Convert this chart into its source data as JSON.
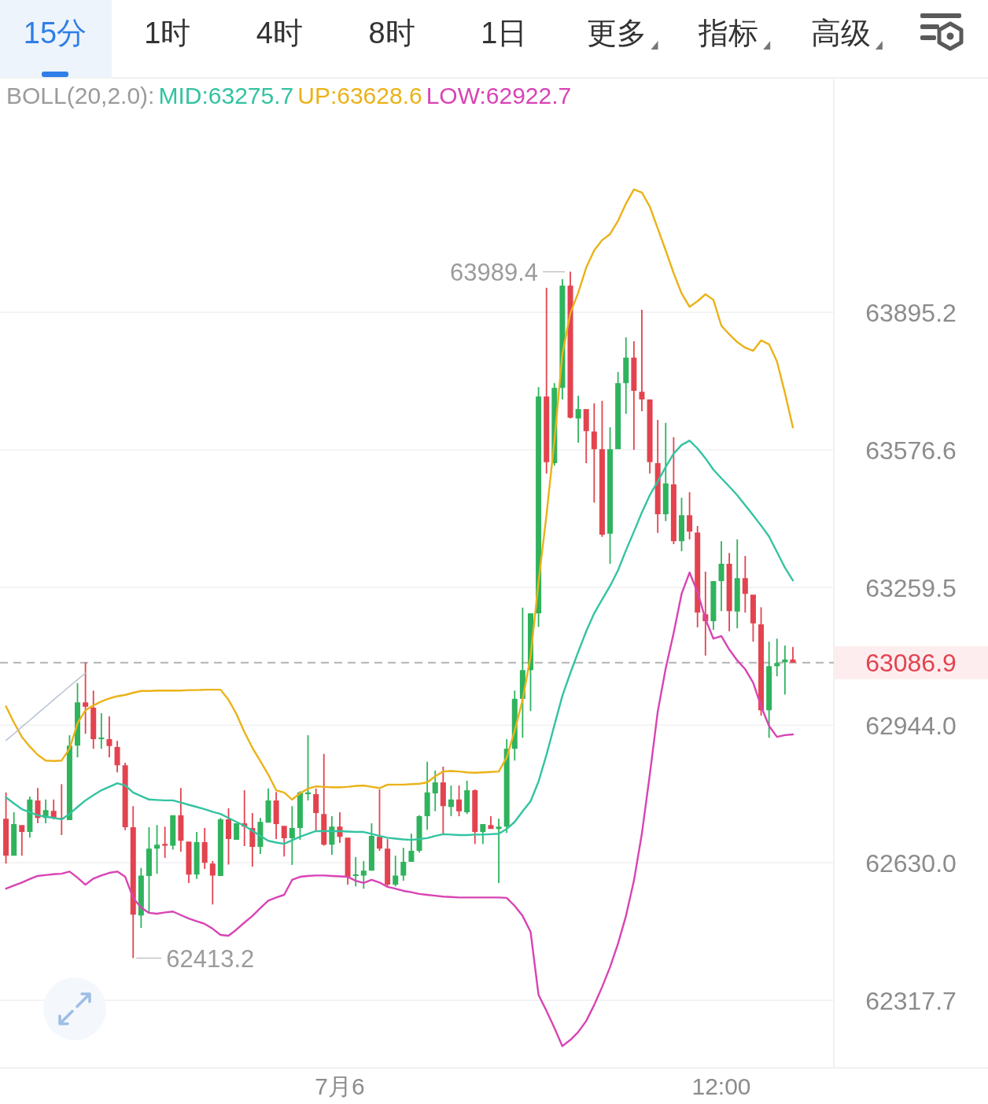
{
  "chart_data": {
    "type": "candlestick",
    "legend_title": "BOLL(20,2.0):",
    "annotations": [
      "15分",
      "1时",
      "4时",
      "8时",
      "1日",
      "更多",
      "指标",
      "高级",
      "63989.4",
      "62413.2"
    ],
    "categories": [
      null,
      null,
      null,
      null,
      null,
      null,
      null,
      null,
      null,
      null,
      null,
      null,
      null,
      null,
      null,
      null,
      null,
      null,
      null,
      null,
      null,
      null,
      null,
      null,
      null,
      null,
      null,
      null,
      null,
      null,
      null,
      null,
      null,
      null,
      null,
      null,
      null,
      null,
      null,
      null,
      null,
      null,
      "7月6",
      null,
      null,
      null,
      null,
      null,
      null,
      null,
      null,
      null,
      null,
      null,
      null,
      null,
      null,
      null,
      null,
      null,
      null,
      null,
      null,
      null,
      null,
      null,
      null,
      null,
      null,
      null,
      null,
      null,
      null,
      null,
      null,
      null,
      null,
      null,
      null,
      null,
      null,
      null,
      null,
      null,
      null,
      null,
      null,
      null,
      null,
      null,
      "12:00",
      null,
      null,
      null,
      null,
      null,
      null,
      null,
      null,
      null
    ],
    "ohlc": [
      [
        62730,
        62790,
        62628,
        62646
      ],
      [
        62646,
        62745,
        62646,
        62718
      ],
      [
        62716,
        62716,
        62646,
        62700
      ],
      [
        62700,
        62781,
        62687,
        62774
      ],
      [
        62772,
        62800,
        62720,
        62732
      ],
      [
        62732,
        62774,
        62720,
        62750
      ],
      [
        62748,
        62774,
        62729,
        62732
      ],
      [
        62732,
        62809,
        62693,
        62729
      ],
      [
        62727,
        62921,
        62727,
        62897
      ],
      [
        62897,
        63040,
        62870,
        62996
      ],
      [
        62996,
        63088,
        62924,
        62986
      ],
      [
        62984,
        63023,
        62890,
        62912
      ],
      [
        62912,
        62971,
        62890,
        62915
      ],
      [
        62912,
        62964,
        62870,
        62896
      ],
      [
        62894,
        62908,
        62836,
        62852
      ],
      [
        62852,
        62858,
        62704,
        62711
      ],
      [
        62711,
        62759,
        62413.2,
        62512
      ],
      [
        62510,
        62618,
        62482,
        62601
      ],
      [
        62600,
        62711,
        62514,
        62662
      ],
      [
        62662,
        62716,
        62605,
        62671
      ],
      [
        62673,
        62712,
        62641,
        62669
      ],
      [
        62669,
        62738,
        62660,
        62738
      ],
      [
        62738,
        62800,
        62655,
        62680
      ],
      [
        62678,
        62678,
        62584,
        62603
      ],
      [
        62603,
        62700,
        62593,
        62677
      ],
      [
        62677,
        62709,
        62616,
        62630
      ],
      [
        62628,
        62634,
        62535,
        62601
      ],
      [
        62600,
        62732,
        62600,
        62729
      ],
      [
        62729,
        62754,
        62626,
        62684
      ],
      [
        62682,
        62720,
        62682,
        62720
      ],
      [
        62720,
        62795,
        62668,
        62712
      ],
      [
        62709,
        62743,
        62621,
        62666
      ],
      [
        62666,
        62732,
        62650,
        62723
      ],
      [
        62721,
        62799,
        62721,
        62772
      ],
      [
        62772,
        62791,
        62684,
        62718
      ],
      [
        62714,
        62714,
        62644,
        62686
      ],
      [
        62686,
        62759,
        62625,
        62709
      ],
      [
        62709,
        62793,
        62682,
        62790
      ],
      [
        62786,
        62921,
        62772,
        62790
      ],
      [
        62786,
        62799,
        62702,
        62743
      ],
      [
        62741,
        62878,
        62669,
        62671
      ],
      [
        62671,
        62736,
        62648,
        62712
      ],
      [
        62712,
        62745,
        62675,
        62689
      ],
      [
        62687,
        62687,
        62580,
        62598
      ],
      [
        62600,
        62643,
        62576,
        62603
      ],
      [
        62601,
        62634,
        62571,
        62612
      ],
      [
        62612,
        62720,
        62612,
        62691
      ],
      [
        62689,
        62797,
        62657,
        62662
      ],
      [
        62662,
        62684,
        62576,
        62580
      ],
      [
        62580,
        62646,
        62576,
        62601
      ],
      [
        62601,
        62664,
        62589,
        62632
      ],
      [
        62632,
        62696,
        62632,
        62657
      ],
      [
        62657,
        62738,
        62653,
        62736
      ],
      [
        62736,
        62860,
        62705,
        62790
      ],
      [
        62788,
        62840,
        62747,
        62813
      ],
      [
        62813,
        62849,
        62693,
        62759
      ],
      [
        62757,
        62806,
        62736,
        62774
      ],
      [
        62774,
        62806,
        62736,
        62747
      ],
      [
        62745,
        62817,
        62741,
        62795
      ],
      [
        62795,
        62797,
        62673,
        62700
      ],
      [
        62700,
        62718,
        62673,
        62718
      ],
      [
        62716,
        62736,
        62707,
        62707
      ],
      [
        62707,
        62730,
        62584,
        62712
      ],
      [
        62712,
        62912,
        62698,
        62890
      ],
      [
        62890,
        63023,
        62863,
        63004
      ],
      [
        63004,
        63213,
        62915,
        63070
      ],
      [
        63070,
        63200,
        62976,
        63200
      ],
      [
        63200,
        63722,
        63169,
        63700
      ],
      [
        63700,
        63952,
        63522,
        63548
      ],
      [
        63546,
        63731,
        63540,
        63720
      ],
      [
        63720,
        63972,
        63693,
        63957
      ],
      [
        63957,
        63989.4,
        63649,
        63651
      ],
      [
        63649,
        63702,
        63593,
        63671
      ],
      [
        63671,
        63671,
        63546,
        63620
      ],
      [
        63619,
        63684,
        63455,
        63578
      ],
      [
        63578,
        63690,
        63376,
        63381
      ],
      [
        63383,
        63629,
        63314,
        63578
      ],
      [
        63578,
        63757,
        63578,
        63731
      ],
      [
        63731,
        63837,
        63660,
        63790
      ],
      [
        63790,
        63828,
        63577,
        63713
      ],
      [
        63711,
        63901,
        63666,
        63693
      ],
      [
        63693,
        63693,
        63522,
        63548
      ],
      [
        63546,
        63646,
        63385,
        63428
      ],
      [
        63428,
        63639,
        63412,
        63499
      ],
      [
        63497,
        63606,
        63359,
        63366
      ],
      [
        63366,
        63466,
        63343,
        63426
      ],
      [
        63426,
        63479,
        63370,
        63388
      ],
      [
        63386,
        63401,
        63168,
        63202
      ],
      [
        63198,
        63296,
        63103,
        63182
      ],
      [
        63182,
        63274,
        63162,
        63274
      ],
      [
        63274,
        63366,
        63205,
        63314
      ],
      [
        63314,
        63339,
        63159,
        63205
      ],
      [
        63204,
        63370,
        63166,
        63281
      ],
      [
        63281,
        63332,
        63202,
        63245
      ],
      [
        63243,
        63243,
        63135,
        63177
      ],
      [
        63175,
        63214,
        62966,
        62978
      ],
      [
        62978,
        63135,
        62915,
        63079
      ],
      [
        63079,
        63142,
        63056,
        63086
      ],
      [
        63088,
        63126,
        63014,
        63094
      ],
      [
        63094,
        63123,
        63086.9,
        63086.9
      ]
    ],
    "colors": [
      "#e3434f",
      "#2fb35d",
      "#e3434f",
      "#2fb35d",
      "#e3434f",
      "#2fb35d",
      "#e3434f",
      "#e3434f",
      "#2fb35d",
      "#2fb35d",
      "#e3434f",
      "#e3434f",
      "#2fb35d",
      "#e3434f",
      "#e3434f",
      "#e3434f",
      "#e3434f",
      "#2fb35d",
      "#2fb35d",
      "#2fb35d",
      "#e3434f",
      "#2fb35d",
      "#e3434f",
      "#e3434f",
      "#2fb35d",
      "#e3434f",
      "#e3434f",
      "#2fb35d",
      "#e3434f",
      "#2fb35d",
      "#e3434f",
      "#e3434f",
      "#2fb35d",
      "#2fb35d",
      "#e3434f",
      "#e3434f",
      "#2fb35d",
      "#2fb35d",
      "#2fb35d",
      "#e3434f",
      "#e3434f",
      "#2fb35d",
      "#e3434f",
      "#e3434f",
      "#2fb35d",
      "#2fb35d",
      "#2fb35d",
      "#e3434f",
      "#e3434f",
      "#2fb35d",
      "#2fb35d",
      "#2fb35d",
      "#2fb35d",
      "#2fb35d",
      "#2fb35d",
      "#e3434f",
      "#2fb35d",
      "#e3434f",
      "#2fb35d",
      "#e3434f",
      "#2fb35d",
      "#e3434f",
      "#2fb35d",
      "#2fb35d",
      "#2fb35d",
      "#2fb35d",
      "#2fb35d",
      "#2fb35d",
      "#e3434f",
      "#2fb35d",
      "#2fb35d",
      "#e3434f",
      "#2fb35d",
      "#e3434f",
      "#e3434f",
      "#e3434f",
      "#2fb35d",
      "#2fb35d",
      "#2fb35d",
      "#e3434f",
      "#e3434f",
      "#e3434f",
      "#e3434f",
      "#2fb35d",
      "#e3434f",
      "#2fb35d",
      "#e3434f",
      "#e3434f",
      "#e3434f",
      "#2fb35d",
      "#2fb35d",
      "#e3434f",
      "#2fb35d",
      "#e3434f",
      "#e3434f",
      "#e3434f",
      "#2fb35d",
      "#2fb35d",
      "#2fb35d",
      "#e3434f"
    ],
    "series": [
      {
        "name": "MID:63275.7",
        "type": "line",
        "color": "#33c3a1",
        "values": [
          62779,
          62765,
          62752,
          62745,
          62738,
          62735,
          62732,
          62729,
          62741,
          62757,
          62772,
          62784,
          62795,
          62803,
          62811,
          62806,
          62790,
          62782,
          62774,
          62773,
          62772,
          62772,
          62767,
          62762,
          62757,
          62752,
          62746,
          62741,
          62732,
          62723,
          62714,
          62703,
          62691,
          62680,
          62676,
          62673,
          62681,
          62689,
          62696,
          62702,
          62702,
          62702,
          62702,
          62701,
          62700,
          62700,
          62696,
          62691,
          62687,
          62685,
          62683,
          62682,
          62684,
          62686,
          62691,
          62695,
          62694,
          62693,
          62693,
          62694,
          62694,
          62695,
          62696,
          62707,
          62723,
          62747,
          62770,
          62815,
          62876,
          62944,
          63011,
          63063,
          63112,
          63159,
          63200,
          63232,
          63263,
          63299,
          63345,
          63388,
          63432,
          63472,
          63504,
          63537,
          63568,
          63588,
          63598,
          63580,
          63557,
          63531,
          63511,
          63492,
          63472,
          63449,
          63426,
          63402,
          63377,
          63341,
          63305,
          63275.7
        ]
      },
      {
        "name": "UP:63628.6",
        "type": "line",
        "color": "#ebb218",
        "values": [
          62987,
          62950,
          62917,
          62895,
          62876,
          62863,
          62862,
          62863,
          62890,
          62948,
          62978,
          62989,
          62998,
          63005,
          63010,
          63013,
          63018,
          63022,
          63022,
          63023,
          63023,
          63023,
          63023,
          63024,
          63024,
          63025,
          63025,
          63025,
          63002,
          62969,
          62928,
          62892,
          62862,
          62831,
          62795,
          62790,
          62774,
          62788,
          62799,
          62804,
          62803,
          62802,
          62802,
          62803,
          62805,
          62806,
          62803,
          62800,
          62808,
          62808,
          62808,
          62809,
          62810,
          62813,
          62827,
          62838,
          62839,
          62838,
          62836,
          62835,
          62836,
          62837,
          62838,
          62870,
          62931,
          63002,
          63101,
          63272,
          63426,
          63598,
          63799,
          63893,
          63941,
          63999,
          64039,
          64063,
          64077,
          64108,
          64148,
          64181,
          64174,
          64141,
          64090,
          64039,
          63986,
          63939,
          63908,
          63921,
          63937,
          63924,
          63864,
          63844,
          63826,
          63813,
          63806,
          63830,
          63821,
          63781,
          63708,
          63628.6
        ]
      },
      {
        "name": "LOW:62922.7",
        "type": "line",
        "color": "#d943b4",
        "values": [
          62571,
          62578,
          62585,
          62593,
          62600,
          62602,
          62604,
          62605,
          62610,
          62596,
          62580,
          62594,
          62601,
          62607,
          62610,
          62598,
          62550,
          62528,
          62516,
          62514,
          62517,
          62519,
          62511,
          62503,
          62497,
          62491,
          62480,
          62466,
          62464,
          62478,
          62494,
          62509,
          62527,
          62544,
          62551,
          62557,
          62591,
          62598,
          62600,
          62601,
          62601,
          62600,
          62599,
          62598,
          62589,
          62584,
          62591,
          62585,
          62575,
          62571,
          62566,
          62563,
          62559,
          62557,
          62555,
          62553,
          62552,
          62551,
          62551,
          62551,
          62551,
          62551,
          62551,
          62550,
          62532,
          62509,
          62473,
          62330,
          62294,
          62255,
          62214,
          62228,
          62246,
          62271,
          62307,
          62348,
          62393,
          62446,
          62509,
          62589,
          62696,
          62831,
          62975,
          63074,
          63155,
          63245,
          63294,
          63249,
          63187,
          63142,
          63148,
          63117,
          63092,
          63072,
          63041,
          62987,
          62942,
          62917,
          62921,
          62922.7
        ]
      },
      {
        "type": "line",
        "color": "#b4c0d2",
        "values": [
          62909,
          62924,
          62940,
          62955,
          62971,
          62986,
          63002,
          63017,
          63033,
          63048,
          63063,
          null,
          null,
          null,
          null,
          null,
          null,
          null,
          null,
          null,
          null,
          null,
          null,
          null,
          null,
          null,
          null,
          null,
          null,
          null,
          null,
          null,
          null,
          null,
          null,
          null,
          null,
          null,
          null,
          null,
          null,
          null,
          null,
          null,
          null,
          null,
          null,
          null,
          null,
          null,
          null,
          null,
          null,
          null,
          null,
          null,
          null,
          null,
          null,
          null,
          null,
          null,
          null,
          null,
          null,
          null,
          null,
          null,
          null,
          null,
          null,
          null,
          null,
          null,
          null,
          null,
          null,
          null,
          null,
          null,
          null,
          null,
          null,
          null,
          null,
          null,
          null,
          null,
          null,
          null,
          null,
          null,
          null,
          null,
          null,
          null,
          null,
          null,
          null,
          null
        ]
      }
    ],
    "ylim": [
      62165,
      64440
    ],
    "yticks": [
      63895.2,
      63576.6,
      63259.5,
      {
        "value": 62944,
        "label": "62944.0"
      },
      {
        "value": 62630,
        "label": "62630.0"
      },
      62317.7
    ],
    "log": true,
    "grid": "y",
    "legend": "top",
    "ref_lines": [
      {
        "axis": "y",
        "value": 63086.9,
        "label": "63086.9",
        "color": "#b3b3b3",
        "line_style": "dashed"
      }
    ]
  }
}
